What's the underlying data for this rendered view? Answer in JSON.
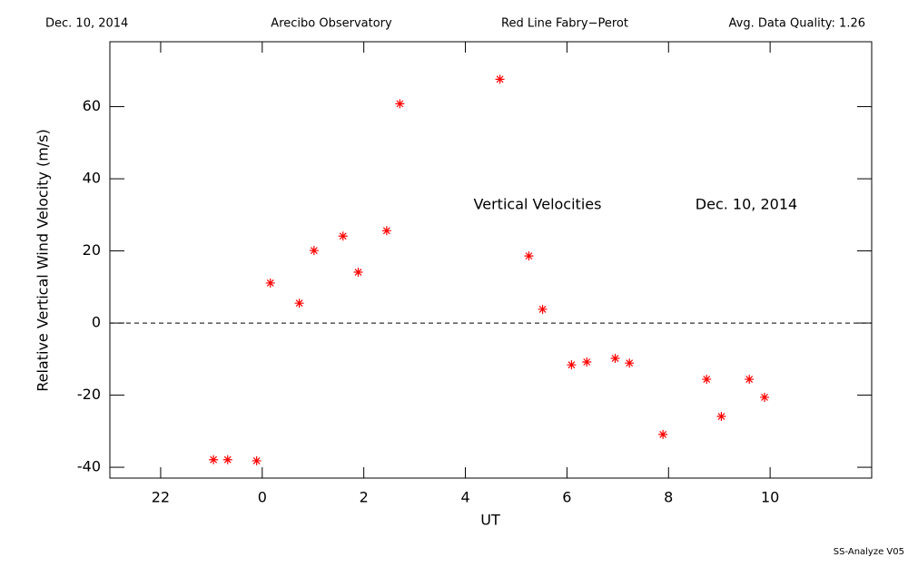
{
  "chart_data": {
    "type": "scatter",
    "header": [
      "Dec. 10, 2014",
      "Arecibo Observatory",
      "Red Line Fabry−Perot",
      "Avg. Data Quality: 1.26"
    ],
    "annotations": [
      "Vertical Velocities",
      "Dec. 10, 2014"
    ],
    "footer": "SS-Analyze V05",
    "xlabel": "UT",
    "ylabel": "Relative Vertical Wind Velocity (m/s)",
    "x": [
      -0.96,
      -0.68,
      -0.11,
      0.16,
      0.73,
      1.02,
      1.59,
      1.89,
      2.45,
      2.71,
      4.68,
      5.25,
      5.52,
      6.09,
      6.39,
      6.95,
      7.23,
      7.89,
      8.75,
      9.04,
      9.59,
      9.89
    ],
    "values": [
      -37.9,
      -37.9,
      -38.2,
      11.1,
      5.5,
      20.1,
      24.1,
      14.1,
      25.6,
      60.8,
      67.6,
      18.6,
      3.8,
      -11.6,
      -10.8,
      -9.8,
      -11.1,
      -30.9,
      -15.6,
      -25.9,
      -15.6,
      -20.6
    ],
    "color": "#ff0000",
    "xlim": [
      -3,
      12
    ],
    "xticks": [
      {
        "value": -2,
        "label": "22"
      },
      0,
      2,
      4,
      6,
      8,
      10
    ],
    "ylim": [
      -43,
      78
    ],
    "yticks": [
      -40,
      -20,
      0,
      20,
      40,
      60
    ],
    "hline": 0
  }
}
